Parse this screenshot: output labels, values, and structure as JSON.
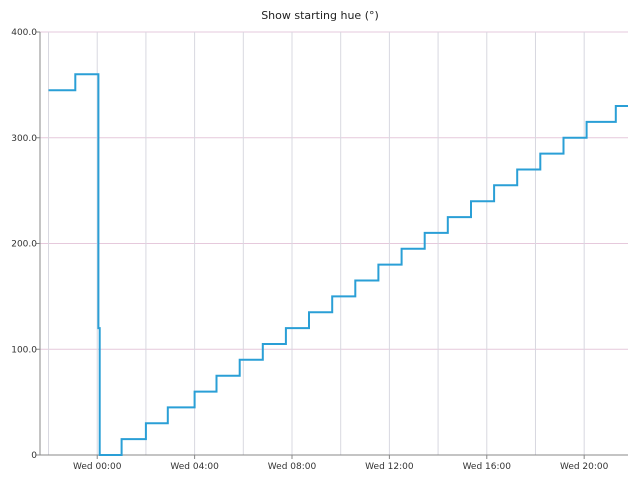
{
  "colors": {
    "series": "#2a9fd6",
    "grid_h": "#e6c9dc",
    "grid_v": "#d8d8e0",
    "axis": "#888888"
  },
  "chart_data": {
    "type": "line",
    "title": "Show starting hue (°)",
    "xlabel": "",
    "ylabel": "",
    "ylim": [
      0,
      400
    ],
    "xlim_hours": [
      -2.35,
      21.8
    ],
    "y_ticks": [
      0,
      100,
      200,
      300,
      400
    ],
    "y_tick_labels": [
      "0",
      "100.0",
      "200.0",
      "300.0",
      "400.0"
    ],
    "x_ticks_hours": [
      0,
      4,
      8,
      12,
      16,
      20
    ],
    "x_tick_labels": [
      "Wed 00:00",
      "Wed 04:00",
      "Wed 08:00",
      "Wed 12:00",
      "Wed 16:00",
      "Wed 20:00"
    ],
    "x_minor_hours": [
      -2,
      2,
      6,
      10,
      14,
      18
    ],
    "grid": true,
    "legend": "none",
    "series": [
      {
        "step": "post",
        "points": [
          [
            -2.0,
            345
          ],
          [
            -0.9,
            360
          ],
          [
            0.05,
            120
          ],
          [
            0.1,
            0
          ],
          [
            1.0,
            15
          ],
          [
            2.0,
            30
          ],
          [
            2.9,
            45
          ],
          [
            4.0,
            60
          ],
          [
            4.9,
            75
          ],
          [
            5.85,
            90
          ],
          [
            6.8,
            105
          ],
          [
            7.75,
            120
          ],
          [
            8.7,
            135
          ],
          [
            9.65,
            150
          ],
          [
            10.6,
            165
          ],
          [
            11.55,
            180
          ],
          [
            12.5,
            195
          ],
          [
            13.45,
            210
          ],
          [
            14.4,
            225
          ],
          [
            15.35,
            240
          ],
          [
            16.3,
            255
          ],
          [
            17.25,
            270
          ],
          [
            18.2,
            285
          ],
          [
            19.15,
            300
          ],
          [
            20.1,
            315
          ],
          [
            21.3,
            330
          ],
          [
            21.8,
            330
          ]
        ]
      }
    ]
  }
}
